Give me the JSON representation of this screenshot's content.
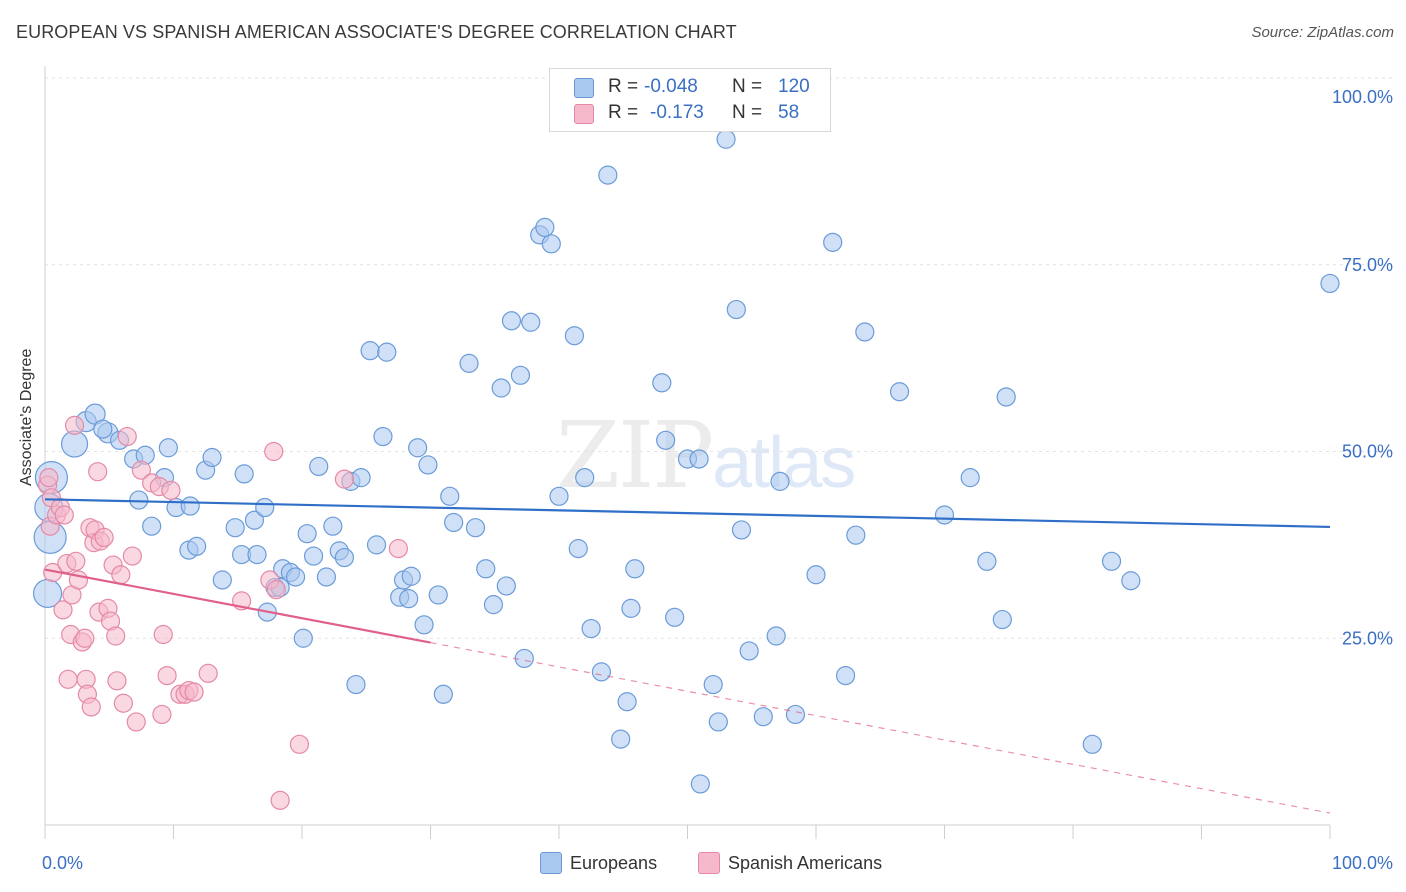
{
  "header": {
    "title": "EUROPEAN VS SPANISH AMERICAN ASSOCIATE'S DEGREE CORRELATION CHART",
    "source": "Source: ZipAtlas.com"
  },
  "watermark": {
    "zip": "ZIP",
    "atlas": "atlas"
  },
  "legend": {
    "rows": [
      {
        "r_label": "R =",
        "r_value": "-0.048",
        "n_label": "N =",
        "n_value": "120"
      },
      {
        "r_label": "R =",
        "r_value": "-0.173",
        "n_label": "N =",
        "n_value": "58"
      }
    ]
  },
  "colors": {
    "blue_fill": "#a9c8f0",
    "blue_stroke": "#6b9bd8",
    "blue_line": "#2f6fc8",
    "pink_fill": "#f6b8cb",
    "pink_stroke": "#e48aa6",
    "pink_line": "#e0608a",
    "grid": "#e2e2e2",
    "tick_text": "#3a6fc4"
  },
  "chart_data": {
    "type": "scatter",
    "title": "EUROPEAN VS SPANISH AMERICAN ASSOCIATE'S DEGREE CORRELATION CHART",
    "xlabel": "",
    "ylabel": "Associate's Degree",
    "xlim": [
      0,
      100
    ],
    "ylim": [
      0,
      100
    ],
    "x_tick_labels": [
      "0.0%",
      "100.0%"
    ],
    "y_tick_labels": [
      "100.0%",
      "75.0%",
      "50.0%",
      "25.0%"
    ],
    "y_ticks": [
      100,
      75,
      50,
      25
    ],
    "legend_entries": [
      "Europeans",
      "Spanish Americans"
    ],
    "series": [
      {
        "name": "Europeans",
        "trend": {
          "x0": 0,
          "y0": 43.6,
          "x1": 100,
          "y1": 39.9,
          "dash_from": 100
        },
        "points": [
          [
            0.5,
            46.5,
            16
          ],
          [
            0.3,
            42.5,
            14
          ],
          [
            0.4,
            38.5,
            16
          ],
          [
            0.2,
            31.0,
            14
          ],
          [
            2.3,
            51.0,
            13
          ],
          [
            3.2,
            54.0,
            10
          ],
          [
            3.9,
            55.0,
            10
          ],
          [
            4.9,
            52.5,
            10
          ],
          [
            5.8,
            51.5,
            9
          ],
          [
            4.5,
            53.0,
            9
          ],
          [
            6.9,
            49.0,
            9
          ],
          [
            7.8,
            49.5,
            9
          ],
          [
            7.3,
            43.5,
            9
          ],
          [
            9.3,
            46.5,
            9
          ],
          [
            9.6,
            50.5,
            9
          ],
          [
            10.2,
            42.5,
            9
          ],
          [
            8.3,
            40.0,
            9
          ],
          [
            11.3,
            42.7,
            9
          ],
          [
            11.2,
            36.8,
            9
          ],
          [
            11.8,
            37.3,
            9
          ],
          [
            12.5,
            47.5,
            9
          ],
          [
            13.0,
            49.2,
            9
          ],
          [
            13.8,
            32.8,
            9
          ],
          [
            14.8,
            39.8,
            9
          ],
          [
            15.3,
            36.2,
            9
          ],
          [
            16.3,
            40.8,
            9
          ],
          [
            15.5,
            47.0,
            9
          ],
          [
            16.5,
            36.2,
            9
          ],
          [
            17.1,
            42.5,
            9
          ],
          [
            17.3,
            28.5,
            9
          ],
          [
            17.9,
            31.8,
            9
          ],
          [
            18.3,
            31.8,
            9
          ],
          [
            18.5,
            34.3,
            9
          ],
          [
            19.1,
            33.8,
            9
          ],
          [
            19.5,
            33.2,
            9
          ],
          [
            20.1,
            25.0,
            9
          ],
          [
            20.4,
            39.0,
            9
          ],
          [
            20.9,
            36.0,
            9
          ],
          [
            21.3,
            48.0,
            9
          ],
          [
            21.9,
            33.2,
            9
          ],
          [
            22.4,
            40.0,
            9
          ],
          [
            22.9,
            36.7,
            9
          ],
          [
            23.3,
            35.8,
            9
          ],
          [
            23.8,
            46.0,
            9
          ],
          [
            24.2,
            18.8,
            9
          ],
          [
            24.6,
            46.5,
            9
          ],
          [
            25.3,
            63.5,
            9
          ],
          [
            25.8,
            37.5,
            9
          ],
          [
            26.3,
            52.0,
            9
          ],
          [
            26.6,
            63.3,
            9
          ],
          [
            27.6,
            30.5,
            9
          ],
          [
            27.9,
            32.8,
            9
          ],
          [
            28.3,
            30.3,
            9
          ],
          [
            28.5,
            33.3,
            9
          ],
          [
            29.0,
            50.5,
            9
          ],
          [
            29.5,
            26.8,
            9
          ],
          [
            29.8,
            48.2,
            9
          ],
          [
            30.6,
            30.8,
            9
          ],
          [
            31.0,
            17.5,
            9
          ],
          [
            31.5,
            44.0,
            9
          ],
          [
            31.8,
            40.5,
            9
          ],
          [
            33.0,
            61.8,
            9
          ],
          [
            33.5,
            39.8,
            9
          ],
          [
            34.3,
            34.3,
            9
          ],
          [
            34.9,
            29.5,
            9
          ],
          [
            35.5,
            58.5,
            9
          ],
          [
            35.9,
            32.0,
            9
          ],
          [
            36.3,
            67.5,
            9
          ],
          [
            37.0,
            60.2,
            9
          ],
          [
            37.8,
            67.3,
            9
          ],
          [
            37.3,
            22.3,
            9
          ],
          [
            38.5,
            79.0,
            9
          ],
          [
            38.9,
            80.0,
            9
          ],
          [
            39.4,
            77.8,
            9
          ],
          [
            40.0,
            44.0,
            9
          ],
          [
            41.2,
            65.5,
            9
          ],
          [
            41.5,
            37.0,
            9
          ],
          [
            42.0,
            46.5,
            9
          ],
          [
            42.5,
            26.3,
            9
          ],
          [
            43.3,
            20.5,
            9
          ],
          [
            43.8,
            87.0,
            9
          ],
          [
            44.8,
            11.5,
            9
          ],
          [
            45.3,
            16.5,
            9
          ],
          [
            45.6,
            29.0,
            9
          ],
          [
            45.9,
            34.3,
            9
          ],
          [
            48.0,
            59.2,
            9
          ],
          [
            48.3,
            51.5,
            9
          ],
          [
            49.0,
            27.8,
            9
          ],
          [
            50.0,
            49.0,
            9
          ],
          [
            50.9,
            49.0,
            9
          ],
          [
            51.0,
            5.5,
            9
          ],
          [
            52.0,
            18.8,
            9
          ],
          [
            52.4,
            13.8,
            9
          ],
          [
            53.0,
            91.8,
            9
          ],
          [
            53.8,
            69.0,
            9
          ],
          [
            54.2,
            39.5,
            9
          ],
          [
            54.8,
            23.3,
            9
          ],
          [
            55.9,
            14.5,
            9
          ],
          [
            56.9,
            25.3,
            9
          ],
          [
            57.2,
            46.0,
            9
          ],
          [
            58.4,
            14.8,
            9
          ],
          [
            60.0,
            33.5,
            9
          ],
          [
            61.3,
            78.0,
            9
          ],
          [
            62.3,
            20.0,
            9
          ],
          [
            63.1,
            38.8,
            9
          ],
          [
            63.8,
            66.0,
            9
          ],
          [
            66.5,
            58.0,
            9
          ],
          [
            70.0,
            41.5,
            9
          ],
          [
            72.0,
            46.5,
            9
          ],
          [
            73.3,
            35.3,
            9
          ],
          [
            74.5,
            27.5,
            9
          ],
          [
            74.8,
            57.3,
            9
          ],
          [
            81.5,
            10.8,
            9
          ],
          [
            83.0,
            35.3,
            9
          ],
          [
            84.5,
            32.7,
            9
          ],
          [
            100.0,
            72.5,
            9
          ]
        ]
      },
      {
        "name": "Spanish Americans",
        "trend": {
          "x0": 0,
          "y0": 34.2,
          "x1": 100,
          "y1": 1.6,
          "dash_from": 30
        },
        "points": [
          [
            0.2,
            45.5,
            9
          ],
          [
            0.3,
            46.5,
            9
          ],
          [
            0.4,
            40.0,
            9
          ],
          [
            0.5,
            43.8,
            9
          ],
          [
            0.6,
            33.8,
            9
          ],
          [
            0.9,
            41.5,
            9
          ],
          [
            1.2,
            42.5,
            9
          ],
          [
            1.4,
            28.8,
            9
          ],
          [
            1.5,
            41.5,
            9
          ],
          [
            1.7,
            35.0,
            9
          ],
          [
            1.8,
            19.5,
            9
          ],
          [
            2.0,
            25.5,
            9
          ],
          [
            2.1,
            30.8,
            9
          ],
          [
            2.3,
            53.5,
            9
          ],
          [
            2.4,
            35.3,
            9
          ],
          [
            2.6,
            32.8,
            9
          ],
          [
            2.9,
            24.5,
            9
          ],
          [
            3.1,
            25.0,
            9
          ],
          [
            3.2,
            19.5,
            9
          ],
          [
            3.3,
            17.5,
            9
          ],
          [
            3.5,
            39.8,
            9
          ],
          [
            3.6,
            15.8,
            9
          ],
          [
            3.8,
            37.8,
            9
          ],
          [
            3.9,
            39.5,
            9
          ],
          [
            4.1,
            47.3,
            9
          ],
          [
            4.2,
            28.5,
            9
          ],
          [
            4.3,
            38.0,
            9
          ],
          [
            4.6,
            38.5,
            9
          ],
          [
            4.9,
            29.0,
            9
          ],
          [
            5.1,
            27.3,
            9
          ],
          [
            5.3,
            34.8,
            9
          ],
          [
            5.5,
            25.3,
            9
          ],
          [
            5.6,
            19.3,
            9
          ],
          [
            5.9,
            33.5,
            9
          ],
          [
            6.1,
            16.3,
            9
          ],
          [
            6.4,
            52.0,
            9
          ],
          [
            6.8,
            36.0,
            9
          ],
          [
            7.1,
            13.8,
            9
          ],
          [
            7.5,
            47.5,
            9
          ],
          [
            8.3,
            45.8,
            9
          ],
          [
            8.9,
            45.3,
            9
          ],
          [
            9.1,
            14.8,
            9
          ],
          [
            9.2,
            25.5,
            9
          ],
          [
            9.5,
            20.0,
            9
          ],
          [
            9.8,
            44.8,
            9
          ],
          [
            10.5,
            17.5,
            9
          ],
          [
            10.9,
            17.5,
            9
          ],
          [
            11.2,
            18.0,
            9
          ],
          [
            11.6,
            17.8,
            9
          ],
          [
            12.7,
            20.3,
            9
          ],
          [
            15.3,
            30.0,
            9
          ],
          [
            17.5,
            32.8,
            9
          ],
          [
            17.8,
            50.0,
            9
          ],
          [
            18.0,
            31.5,
            9
          ],
          [
            18.3,
            3.3,
            9
          ],
          [
            19.8,
            10.8,
            9
          ],
          [
            23.3,
            46.3,
            9
          ],
          [
            27.5,
            37.0,
            9
          ]
        ]
      }
    ]
  }
}
